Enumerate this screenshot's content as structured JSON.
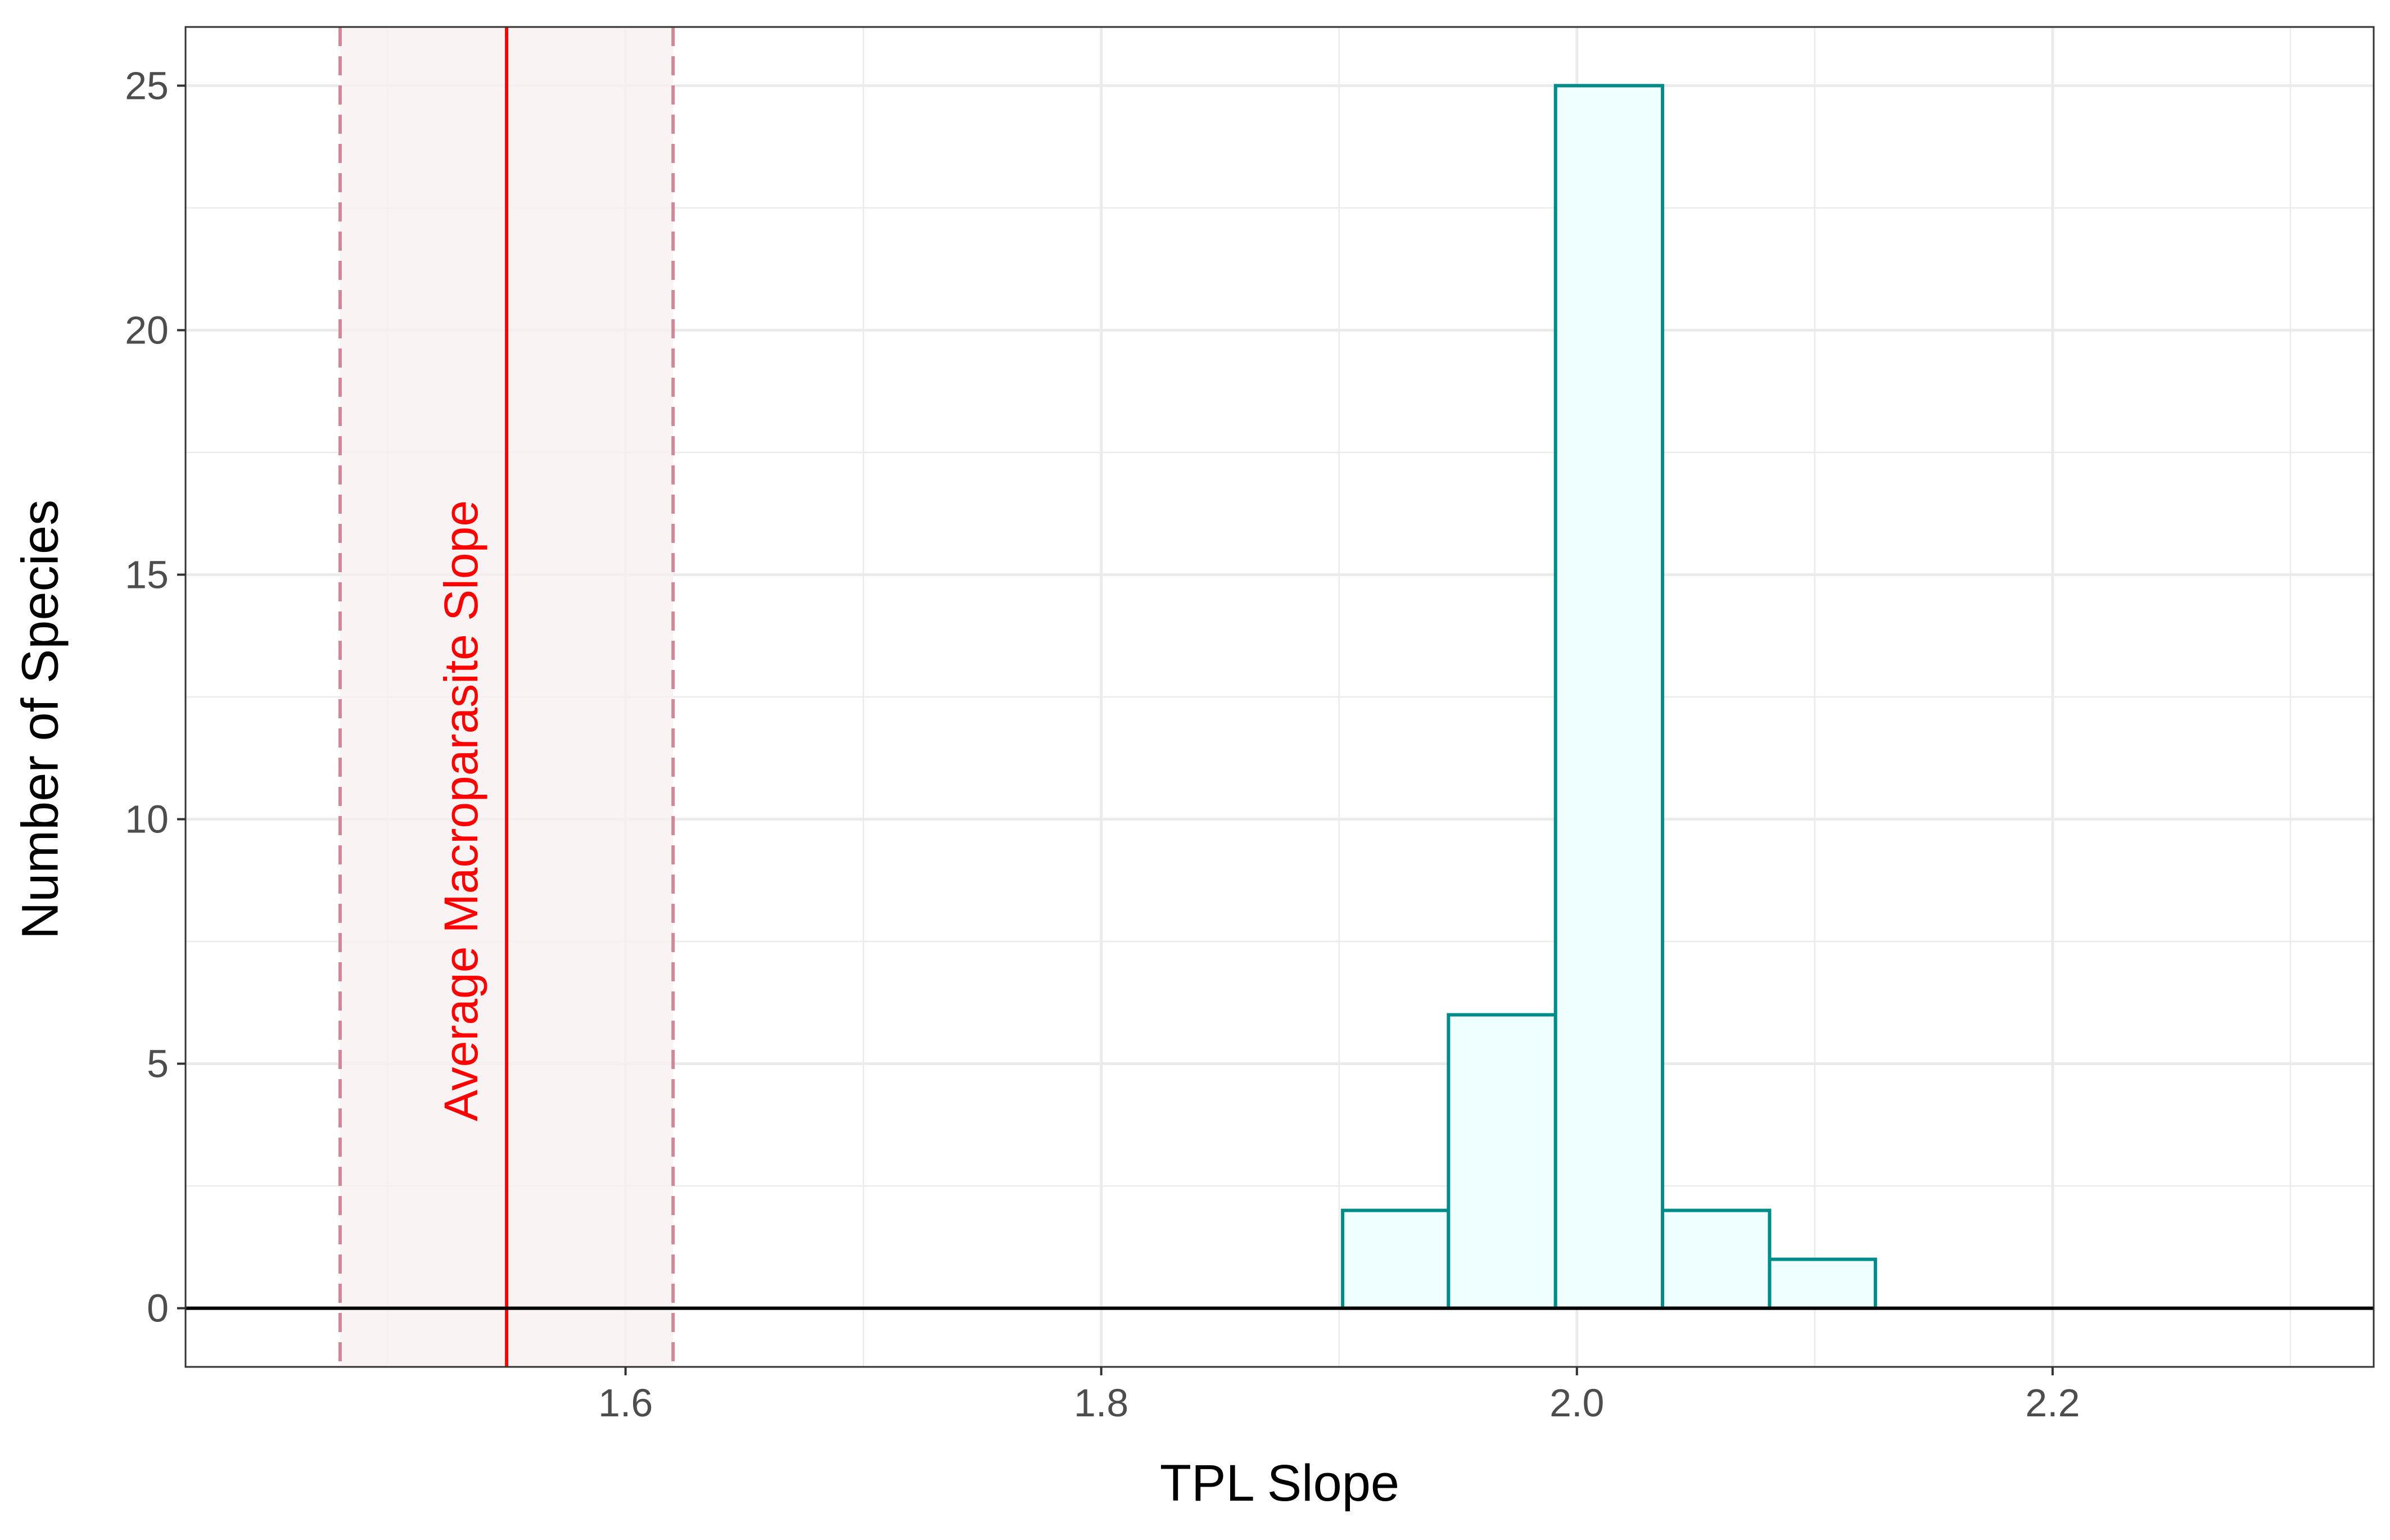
{
  "chart_data": {
    "type": "bar",
    "xlabel": "TPL Slope",
    "ylabel": "Number of Species",
    "xlim": [
      1.415,
      2.335
    ],
    "ylim": [
      -1.2,
      26.2
    ],
    "x_ticks": [
      1.6,
      1.8,
      2.0,
      2.2
    ],
    "x_tick_labels": [
      "1.6",
      "1.8",
      "2.0",
      "2.2"
    ],
    "y_ticks": [
      0,
      5,
      10,
      15,
      20,
      25
    ],
    "y_tick_labels": [
      "0",
      "5",
      "10",
      "15",
      "20",
      "25"
    ],
    "grid": true,
    "bins": [
      {
        "x0": 1.9015,
        "x1": 1.946,
        "count": 2
      },
      {
        "x0": 1.946,
        "x1": 1.991,
        "count": 6
      },
      {
        "x0": 1.991,
        "x1": 2.036,
        "count": 25
      },
      {
        "x0": 2.036,
        "x1": 2.081,
        "count": 2
      },
      {
        "x0": 2.081,
        "x1": 2.1255,
        "count": 1
      }
    ],
    "reference_line": {
      "x": 1.55,
      "label": "Average Macroparasite Slope",
      "color": "#ff0000"
    },
    "reference_interval": {
      "lower": 1.48,
      "upper": 1.62,
      "fill": "#f7f0f0",
      "line_color": "#d08898"
    },
    "baseline_y": 0,
    "colors": {
      "bar_fill": "#f0ffff",
      "bar_stroke": "#008b8b",
      "grid": "#ebebeb",
      "panel_border": "#333333"
    }
  }
}
